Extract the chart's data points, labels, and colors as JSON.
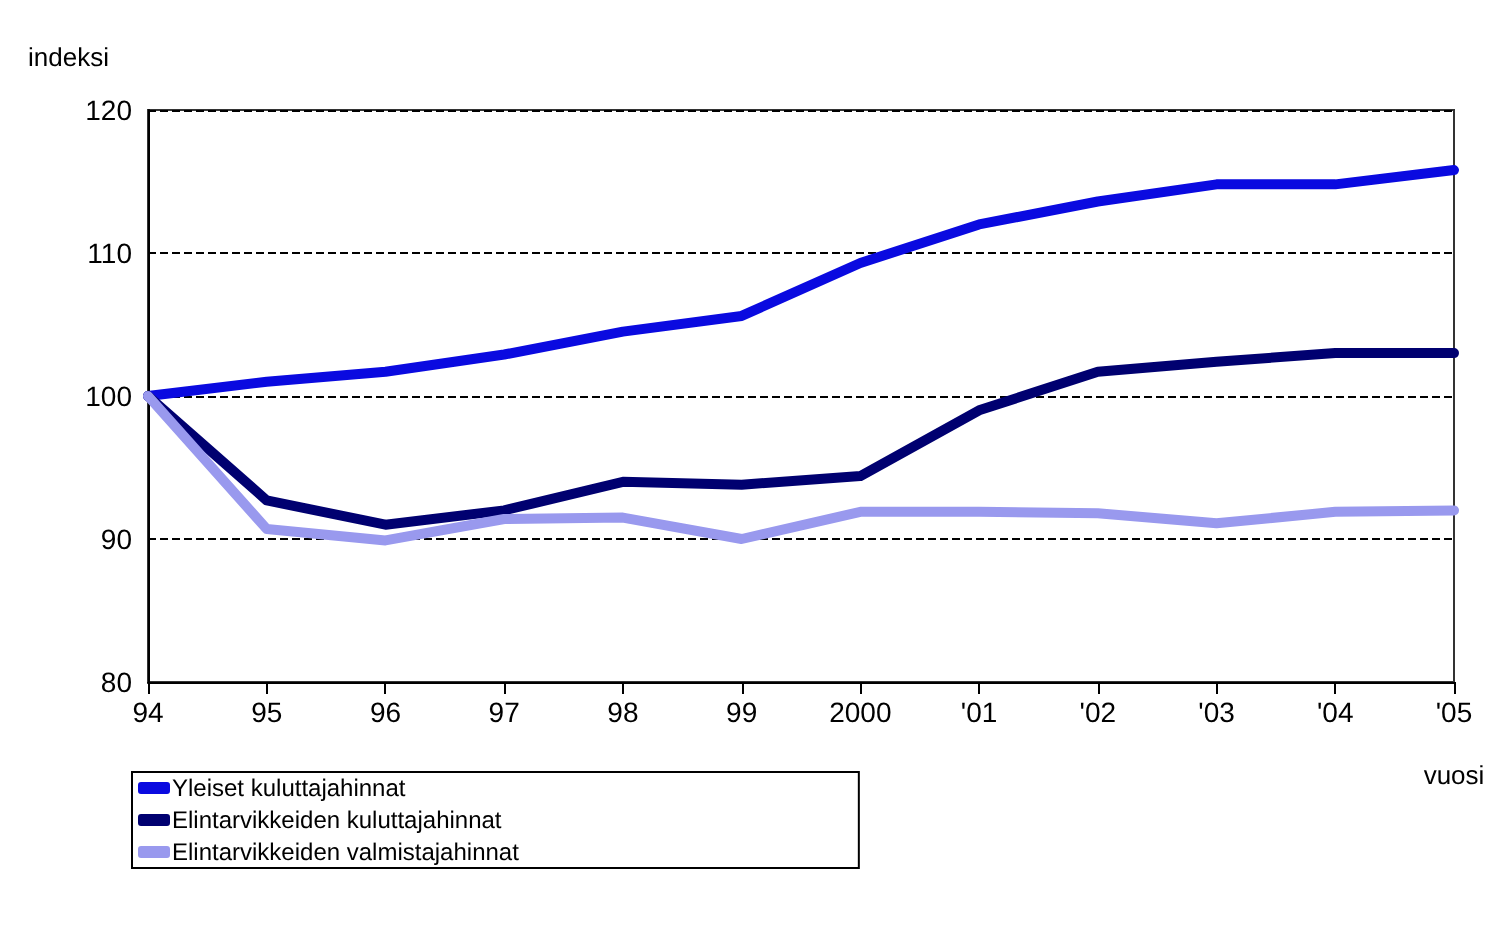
{
  "chart_data": {
    "type": "line",
    "ylabel": "indeksi",
    "xlabel": "vuosi",
    "categories": [
      "94",
      "95",
      "96",
      "97",
      "98",
      "99",
      "2000",
      "'01",
      "'02",
      "'03",
      "'04",
      "'05"
    ],
    "series": [
      {
        "name": "Yleiset kuluttajahinnat",
        "color": "#0a0ae0",
        "values": [
          100,
          101,
          101.7,
          102.9,
          104.5,
          105.6,
          109.3,
          112,
          113.6,
          114.8,
          114.8,
          115.8
        ]
      },
      {
        "name": "Elintarvikkeiden kuluttajahinnat",
        "color": "#000070",
        "values": [
          100,
          92.7,
          91,
          92,
          94,
          93.8,
          94.4,
          99,
          101.7,
          102.4,
          103,
          103
        ]
      },
      {
        "name": "Elintarvikkeiden valmistajahinnat",
        "color": "#9999ee",
        "values": [
          100,
          90.7,
          89.9,
          91.4,
          91.5,
          90,
          91.9,
          91.9,
          91.8,
          91.1,
          91.9,
          92
        ]
      }
    ],
    "ylim": [
      80,
      120
    ],
    "yticks": [
      80,
      90,
      100,
      110,
      120
    ],
    "grid": "y",
    "legend": "bottom left",
    "marker": "none",
    "line_style": "solid"
  }
}
